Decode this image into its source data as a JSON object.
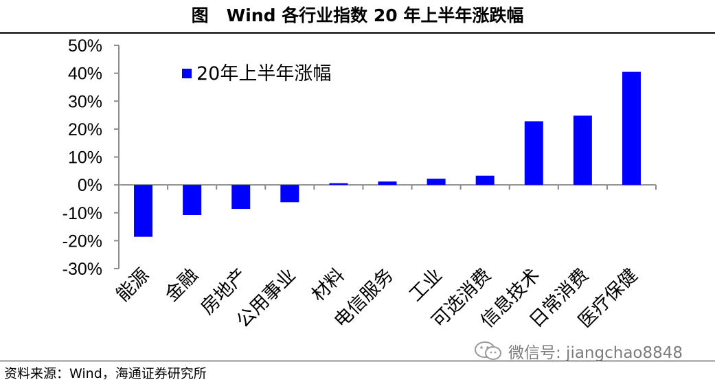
{
  "title": {
    "prefix": "图",
    "text": "Wind 各行业指数 20 年上半年涨跌幅"
  },
  "source": "资料来源：Wind，海通证券研究所",
  "watermark": {
    "text": "微信号: jiangchao8848",
    "icon": "wechat-icon"
  },
  "colors": {
    "bar": "#0000FF",
    "axis": "#8c8c8c",
    "text": "#000000"
  },
  "chart_data": {
    "type": "bar",
    "categories": [
      "能源",
      "金融",
      "房地产",
      "公用事业",
      "材料",
      "电信服务",
      "工业",
      "可选消费",
      "信息技术",
      "日常消费",
      "医疗保健"
    ],
    "series": [
      {
        "name": "20年上半年涨幅",
        "values": [
          -18.6,
          -10.8,
          -8.6,
          -6.2,
          0.6,
          1.2,
          2.2,
          3.3,
          22.8,
          24.8,
          40.5
        ]
      }
    ],
    "ylim": [
      -30,
      50
    ],
    "yticks": [
      50,
      40,
      30,
      20,
      10,
      0,
      -10,
      -20,
      -30
    ],
    "yformat": "percent",
    "xlabel": "",
    "ylabel": "",
    "legend": "top-left",
    "grid": false
  }
}
